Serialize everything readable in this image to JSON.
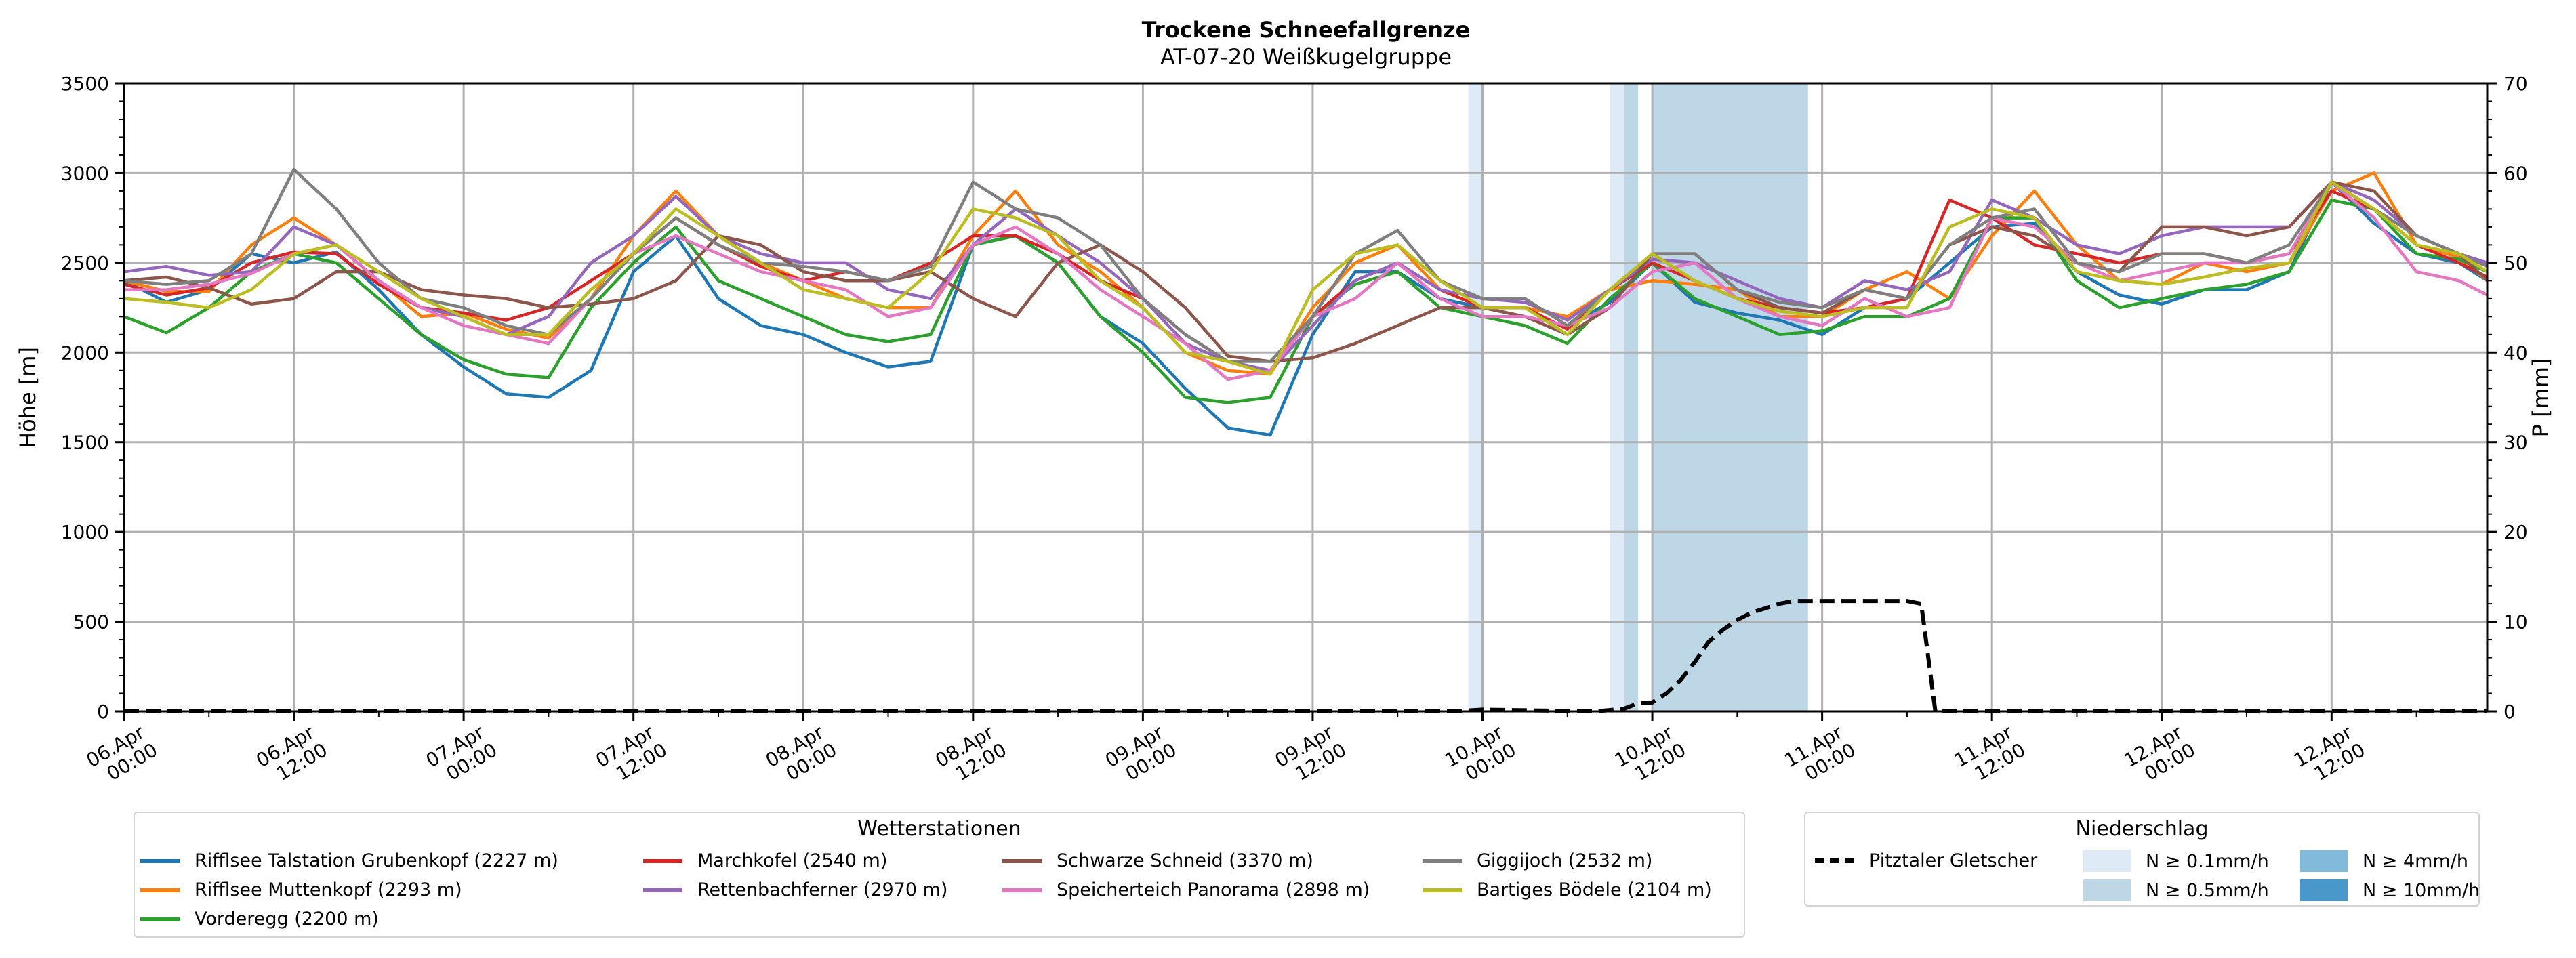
{
  "chart_data": {
    "type": "line",
    "title": "Trockene Schneefallgrenze",
    "subtitle": "AT-07-20 Weißkugelgruppe",
    "ylabel": "Höhe [m]",
    "ylabel_right": "P [mm]",
    "ylim": [
      0,
      3500
    ],
    "ylim_right": [
      0,
      70
    ],
    "yticks": [
      "0",
      "500",
      "1000",
      "1500",
      "2000",
      "2500",
      "3000",
      "3500"
    ],
    "yticks_right": [
      "0",
      "10",
      "20",
      "30",
      "40",
      "50",
      "60",
      "70"
    ],
    "x_unit": "hours since 06.Apr 00:00",
    "xlim": [
      0,
      167
    ],
    "grid": true,
    "xticks": [
      {
        "h": 0,
        "label": [
          "06.Apr",
          "00:00"
        ]
      },
      {
        "h": 12,
        "label": [
          "06.Apr",
          "12:00"
        ]
      },
      {
        "h": 24,
        "label": [
          "07.Apr",
          "00:00"
        ]
      },
      {
        "h": 36,
        "label": [
          "07.Apr",
          "12:00"
        ]
      },
      {
        "h": 48,
        "label": [
          "08.Apr",
          "00:00"
        ]
      },
      {
        "h": 60,
        "label": [
          "08.Apr",
          "12:00"
        ]
      },
      {
        "h": 72,
        "label": [
          "09.Apr",
          "00:00"
        ]
      },
      {
        "h": 84,
        "label": [
          "09.Apr",
          "12:00"
        ]
      },
      {
        "h": 96,
        "label": [
          "10.Apr",
          "00:00"
        ]
      },
      {
        "h": 108,
        "label": [
          "10.Apr",
          "12:00"
        ]
      },
      {
        "h": 120,
        "label": [
          "11.Apr",
          "00:00"
        ]
      },
      {
        "h": 132,
        "label": [
          "11.Apr",
          "12:00"
        ]
      },
      {
        "h": 144,
        "label": [
          "12.Apr",
          "00:00"
        ]
      },
      {
        "h": 156,
        "label": [
          "12.Apr",
          "12:00"
        ]
      }
    ],
    "x_hours": [
      0,
      3,
      6,
      9,
      12,
      15,
      18,
      21,
      24,
      27,
      30,
      33,
      36,
      39,
      42,
      45,
      48,
      51,
      54,
      57,
      60,
      63,
      66,
      69,
      72,
      75,
      78,
      81,
      84,
      87,
      90,
      93,
      96,
      99,
      102,
      105,
      108,
      111,
      114,
      117,
      120,
      123,
      126,
      129,
      132,
      135,
      138,
      141,
      144,
      147,
      150,
      153,
      156,
      159,
      162,
      165,
      167
    ],
    "series": [
      {
        "name": "Rifflsee Talstation Grubenkopf (2227 m)",
        "color": "#1f77b4",
        "values": [
          2400,
          2280,
          2350,
          2550,
          2500,
          2560,
          2350,
          2100,
          1920,
          1770,
          1750,
          1900,
          2450,
          2650,
          2300,
          2150,
          2100,
          2000,
          1920,
          1950,
          2600,
          2650,
          2500,
          2200,
          2050,
          1800,
          1580,
          1540,
          2100,
          2450,
          2450,
          2300,
          2250,
          2200,
          2150,
          2280,
          2500,
          2280,
          2220,
          2180,
          2100,
          2250,
          2300,
          2500,
          2700,
          2720,
          2450,
          2320,
          2270,
          2350,
          2350,
          2450,
          2950,
          2720,
          2550,
          2500,
          2400
        ]
      },
      {
        "name": "Rifflsee Muttenkopf (2293 m)",
        "color": "#ff7f0e",
        "values": [
          2400,
          2340,
          2340,
          2600,
          2750,
          2600,
          2400,
          2200,
          2220,
          2130,
          2080,
          2300,
          2650,
          2900,
          2650,
          2500,
          2400,
          2300,
          2250,
          2250,
          2650,
          2900,
          2600,
          2450,
          2250,
          2000,
          1900,
          1880,
          2250,
          2500,
          2600,
          2350,
          2250,
          2250,
          2200,
          2350,
          2400,
          2380,
          2350,
          2200,
          2200,
          2350,
          2450,
          2300,
          2650,
          2900,
          2600,
          2400,
          2380,
          2500,
          2450,
          2500,
          2900,
          3000,
          2600,
          2530,
          2400
        ]
      },
      {
        "name": "Vorderegg (2200 m)",
        "color": "#2ca02c",
        "values": [
          2200,
          2110,
          2250,
          2450,
          2550,
          2500,
          2300,
          2100,
          1960,
          1880,
          1860,
          2250,
          2500,
          2700,
          2400,
          2300,
          2200,
          2100,
          2060,
          2100,
          2600,
          2650,
          2500,
          2200,
          2000,
          1750,
          1720,
          1750,
          2200,
          2380,
          2450,
          2250,
          2200,
          2150,
          2050,
          2300,
          2500,
          2300,
          2200,
          2100,
          2120,
          2200,
          2200,
          2300,
          2750,
          2750,
          2400,
          2250,
          2300,
          2350,
          2380,
          2450,
          2850,
          2800,
          2550,
          2520,
          2450
        ]
      },
      {
        "name": "Marchkofel (2540 m)",
        "color": "#d62728",
        "values": [
          2380,
          2320,
          2360,
          2500,
          2560,
          2550,
          2380,
          2250,
          2220,
          2180,
          2250,
          2400,
          2550,
          2750,
          2600,
          2480,
          2400,
          2450,
          2400,
          2500,
          2650,
          2650,
          2550,
          2400,
          2300,
          2100,
          1950,
          1900,
          2200,
          2400,
          2500,
          2350,
          2250,
          2250,
          2130,
          2350,
          2500,
          2400,
          2300,
          2250,
          2220,
          2250,
          2300,
          2850,
          2750,
          2600,
          2550,
          2500,
          2550,
          2550,
          2500,
          2550,
          2900,
          2800,
          2600,
          2500,
          2420
        ]
      },
      {
        "name": "Rettenbachferner (2970 m)",
        "color": "#9467bd",
        "values": [
          2450,
          2480,
          2430,
          2450,
          2700,
          2600,
          2400,
          2250,
          2200,
          2100,
          2200,
          2500,
          2650,
          2870,
          2650,
          2550,
          2500,
          2500,
          2350,
          2300,
          2600,
          2800,
          2650,
          2500,
          2300,
          2050,
          1950,
          1900,
          2150,
          2400,
          2500,
          2350,
          2300,
          2280,
          2180,
          2350,
          2520,
          2500,
          2400,
          2300,
          2250,
          2400,
          2350,
          2450,
          2850,
          2750,
          2600,
          2550,
          2650,
          2700,
          2700,
          2700,
          2950,
          2850,
          2650,
          2550,
          2500
        ]
      },
      {
        "name": "Schwarze Schneid (3370 m)",
        "color": "#8c564b",
        "values": [
          2400,
          2420,
          2360,
          2270,
          2300,
          2450,
          2450,
          2350,
          2320,
          2300,
          2250,
          2270,
          2300,
          2400,
          2650,
          2600,
          2450,
          2400,
          2400,
          2450,
          2300,
          2200,
          2500,
          2600,
          2450,
          2250,
          1980,
          1950,
          1970,
          2050,
          2150,
          2250,
          2250,
          2200,
          2100,
          2250,
          2550,
          2550,
          2350,
          2250,
          2220,
          2350,
          2300,
          2600,
          2700,
          2650,
          2500,
          2450,
          2700,
          2700,
          2650,
          2700,
          2950,
          2900,
          2650,
          2550,
          2400
        ]
      },
      {
        "name": "Speicherteich Panorama (2898 m)",
        "color": "#e377c2",
        "values": [
          2350,
          2350,
          2380,
          2440,
          2550,
          2600,
          2400,
          2250,
          2150,
          2100,
          2050,
          2300,
          2550,
          2650,
          2550,
          2450,
          2400,
          2350,
          2200,
          2250,
          2600,
          2700,
          2550,
          2350,
          2200,
          2050,
          1850,
          1900,
          2200,
          2300,
          2500,
          2300,
          2200,
          2200,
          2150,
          2250,
          2450,
          2500,
          2300,
          2200,
          2150,
          2300,
          2200,
          2250,
          2750,
          2700,
          2500,
          2400,
          2450,
          2500,
          2500,
          2550,
          2950,
          2750,
          2450,
          2400,
          2320
        ]
      },
      {
        "name": "Giggijoch (2532 m)",
        "color": "#7f7f7f",
        "values": [
          2400,
          2380,
          2400,
          2550,
          3020,
          2800,
          2500,
          2300,
          2250,
          2150,
          2100,
          2300,
          2550,
          2750,
          2600,
          2500,
          2480,
          2450,
          2400,
          2480,
          2950,
          2800,
          2750,
          2600,
          2300,
          2100,
          1950,
          1950,
          2200,
          2550,
          2680,
          2400,
          2300,
          2300,
          2150,
          2350,
          2550,
          2550,
          2350,
          2280,
          2250,
          2350,
          2300,
          2600,
          2750,
          2800,
          2500,
          2450,
          2550,
          2550,
          2500,
          2600,
          2950,
          2800,
          2650,
          2550,
          2480
        ]
      },
      {
        "name": "Bartiges Bödele (2104 m)",
        "color": "#bcbd22",
        "values": [
          2300,
          2280,
          2250,
          2350,
          2550,
          2600,
          2450,
          2300,
          2200,
          2100,
          2100,
          2350,
          2550,
          2800,
          2650,
          2500,
          2350,
          2300,
          2250,
          2450,
          2800,
          2750,
          2650,
          2400,
          2250,
          2000,
          1950,
          1880,
          2350,
          2550,
          2600,
          2400,
          2250,
          2250,
          2100,
          2350,
          2550,
          2400,
          2300,
          2230,
          2200,
          2250,
          2250,
          2700,
          2800,
          2750,
          2450,
          2400,
          2380,
          2420,
          2470,
          2500,
          2950,
          2800,
          2600,
          2550,
          2450
        ]
      }
    ],
    "precip_series": {
      "name": "Pitztaler Gletscher",
      "color": "#000000",
      "style": "dashed",
      "axis": "right",
      "x_hours": [
        0,
        94,
        96,
        104,
        106,
        107,
        108,
        109,
        110,
        111,
        112,
        113,
        114,
        115,
        116,
        117,
        118,
        119,
        126,
        127,
        128,
        167
      ],
      "values_mm": [
        0,
        0,
        0.2,
        0,
        0.3,
        0.9,
        1.0,
        2.0,
        3.5,
        5.5,
        7.8,
        9.1,
        10.2,
        11.0,
        11.5,
        12.0,
        12.3,
        12.3,
        12.3,
        12.0,
        0,
        0
      ]
    },
    "precip_bands": [
      {
        "start_h": 95,
        "end_h": 96,
        "level": "N ≥ 0.1mm/h"
      },
      {
        "start_h": 105,
        "end_h": 106,
        "level": "N ≥ 0.1mm/h"
      },
      {
        "start_h": 106,
        "end_h": 107,
        "level": "N ≥ 0.5mm/h"
      },
      {
        "start_h": 108,
        "end_h": 119,
        "level": "N ≥ 0.5mm/h"
      }
    ],
    "legend_stations": {
      "title": "Wetterstationen",
      "placement": "bottom-left"
    },
    "legend_precip": {
      "title": "Niederschlag",
      "placement": "bottom-right",
      "line_label": "Pitztaler Gletscher",
      "levels": [
        {
          "label": "N ≥ 0.1mm/h",
          "color": "#deebf7"
        },
        {
          "label": "N ≥ 0.5mm/h",
          "color": "#bdd7e7"
        },
        {
          "label": "N ≥ 4mm/h",
          "color": "#82badb"
        },
        {
          "label": "N ≥ 10mm/h",
          "color": "#4a98c9"
        }
      ]
    }
  }
}
